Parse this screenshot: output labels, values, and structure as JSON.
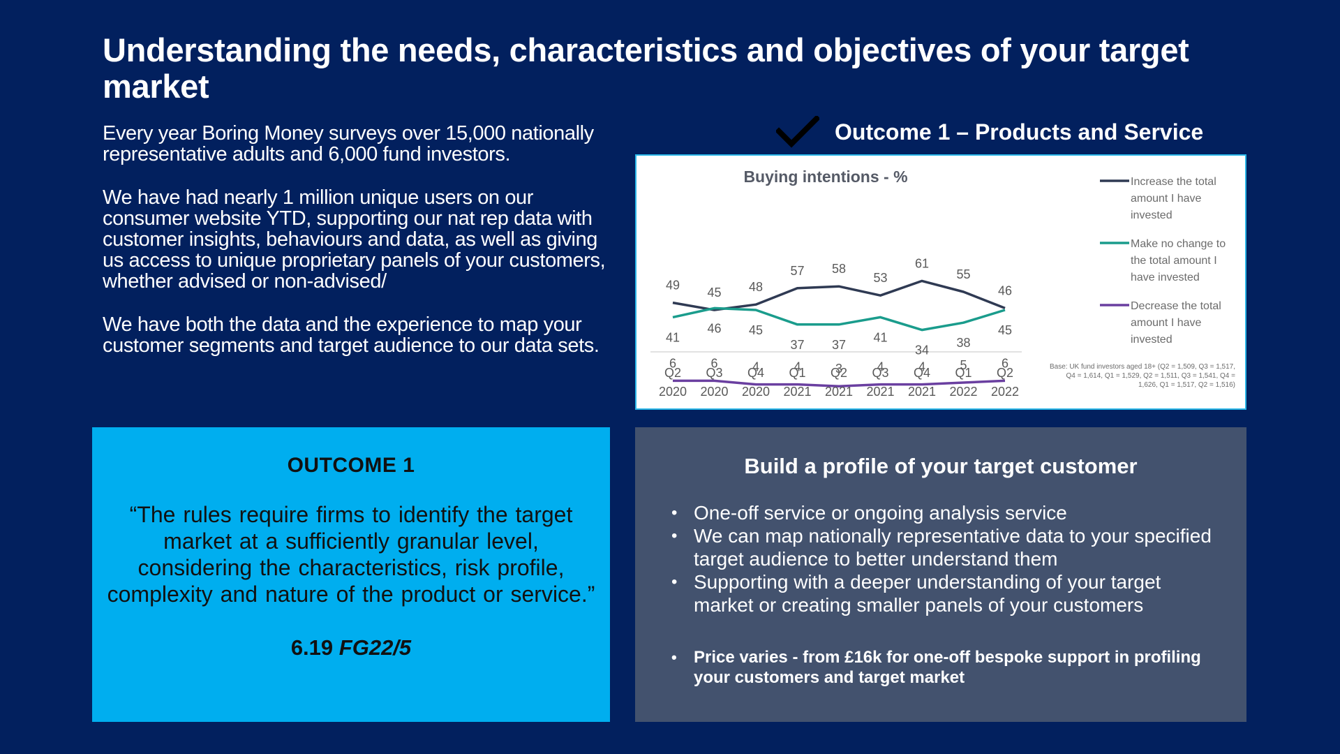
{
  "title": "Understanding the needs, characteristics and objectives of your target market",
  "intro": {
    "p1": "Every year Boring Money surveys over 15,000 nationally representative adults and 6,000 fund investors.",
    "p2": "We have had nearly 1 million unique users on our consumer website YTD, supporting our nat rep data with customer insights, behaviours and data, as well as giving us access to unique proprietary panels of your customers, whether advised or non-advised/",
    "p3": "We have both the data and the experience to map your customer segments and target audience to our data sets."
  },
  "outcome_header": {
    "icon": "checkmark-icon",
    "label": "Outcome 1 – Products and Service"
  },
  "chart_data": {
    "type": "line",
    "title": "Buying intentions - %",
    "categories": [
      "Q2 2020",
      "Q3 2020",
      "Q4 2020",
      "Q1 2021",
      "Q2 2021",
      "Q3 2021",
      "Q4 2021",
      "Q1 2022",
      "Q2 2022"
    ],
    "category_lines": [
      [
        "Q2",
        "2020"
      ],
      [
        "Q3",
        "2020"
      ],
      [
        "Q4",
        "2020"
      ],
      [
        "Q1",
        "2021"
      ],
      [
        "Q2",
        "2021"
      ],
      [
        "Q3",
        "2021"
      ],
      [
        "Q4",
        "2021"
      ],
      [
        "Q1",
        "2022"
      ],
      [
        "Q2",
        "2022"
      ]
    ],
    "series": [
      {
        "name": "Increase the total amount I have invested",
        "legend_lines": [
          "Increase the total",
          "amount I have",
          "invested"
        ],
        "color": "#2f3a53",
        "values": [
          49,
          45,
          48,
          57,
          58,
          53,
          61,
          55,
          46
        ],
        "label_pos": "above"
      },
      {
        "name": "Make no change to the total amount I have invested",
        "legend_lines": [
          "Make no change to",
          "the total amount I",
          "have invested"
        ],
        "color": "#1a9c8c",
        "values": [
          41,
          46,
          45,
          37,
          37,
          41,
          34,
          38,
          45
        ],
        "label_pos": "below"
      },
      {
        "name": "Decrease the total amount I have invested",
        "legend_lines": [
          "Decrease the total",
          "amount I have",
          "invested"
        ],
        "color": "#6a3fa0",
        "values": [
          6,
          6,
          4,
          4,
          3,
          4,
          4,
          5,
          6
        ],
        "label_pos": "above"
      }
    ],
    "legend_position": "right",
    "grid": false,
    "base_note": "Base: UK fund investors aged 18+ (Q2 = 1,509, Q3 = 1,517, Q4 = 1,614, Q1 = 1,529, Q2 = 1,511, Q3 = 1,541, Q4 = 1,626, Q1 = 1,517, Q2 = 1,516)"
  },
  "outcome_box": {
    "heading": "OUTCOME 1",
    "quote": "“The rules require firms to identify the target market at a sufficiently granular level, considering the characteristics, risk profile, complexity and nature of the product or service.”",
    "ref_number": "6.19",
    "ref_doc": "FG22/5"
  },
  "profile_box": {
    "heading": "Build a profile of your target customer",
    "bullets": [
      "One-off service or ongoing analysis service",
      "We can map nationally representative data to your specified target audience to better understand them",
      "Supporting with a deeper understanding of your target market or creating smaller panels of your customers"
    ],
    "price": "Price varies - from £16k for one-off bespoke support in profiling your customers and target market"
  },
  "colors": {
    "background": "#02205e",
    "accent_blue": "#00aeef",
    "panel_grey": "#43526e",
    "chart_border": "#29b6e8"
  }
}
